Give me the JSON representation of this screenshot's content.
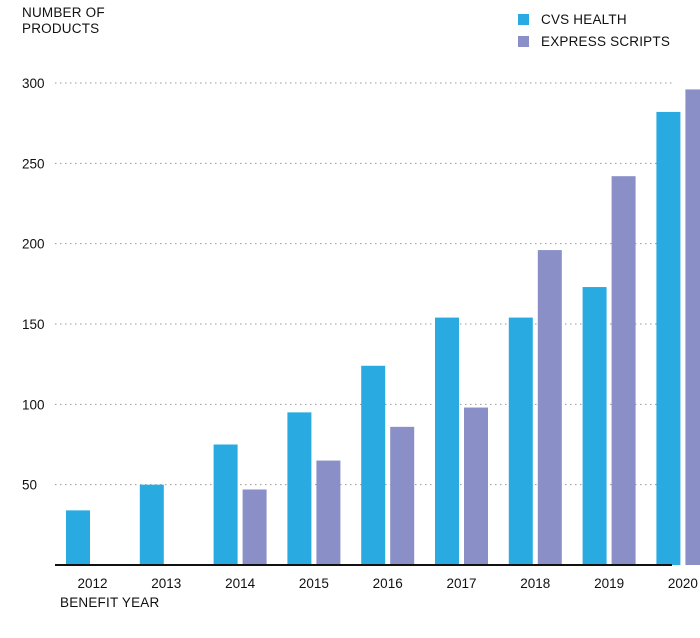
{
  "chart_data": {
    "type": "bar",
    "ylabel": "NUMBER OF\nPRODUCTS",
    "xlabel": "BENEFIT YEAR",
    "categories": [
      "2012",
      "2013",
      "2014",
      "2015",
      "2016",
      "2017",
      "2018",
      "2019",
      "2020"
    ],
    "series": [
      {
        "name": "CVS HEALTH",
        "color": "#29abe2",
        "values": [
          34,
          50,
          75,
          95,
          124,
          154,
          154,
          173,
          282
        ]
      },
      {
        "name": "EXPRESS SCRIPTS",
        "color": "#8a8fc8",
        "values": [
          null,
          null,
          47,
          65,
          86,
          98,
          196,
          242,
          296
        ]
      }
    ],
    "yticks": [
      50,
      100,
      150,
      200,
      250,
      300
    ],
    "ylim": [
      0,
      300
    ],
    "grid": true,
    "gridstyle": "dotted",
    "legend": "top-right"
  }
}
